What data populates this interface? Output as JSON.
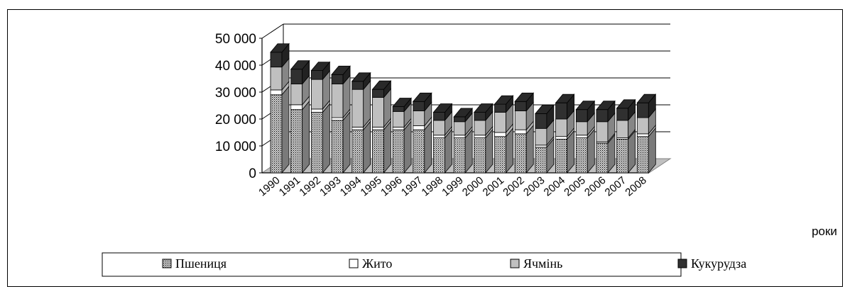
{
  "chart_data": {
    "type": "bar",
    "stacked": true,
    "three_d": true,
    "categories": [
      "1990",
      "1991",
      "1992",
      "1993",
      "1994",
      "1995",
      "1996",
      "1997",
      "1998",
      "1999",
      "2000",
      "2001",
      "2002",
      "2003",
      "2004",
      "2005",
      "2006",
      "2007",
      "2008"
    ],
    "series": [
      {
        "name": "Пшениця",
        "color": "#8c8c8c",
        "pattern": "dots",
        "values": [
          29000,
          23500,
          22500,
          19500,
          16000,
          16000,
          16000,
          16000,
          13000,
          13000,
          13000,
          13500,
          14500,
          9500,
          12500,
          13000,
          11000,
          12500,
          13500
        ]
      },
      {
        "name": "Жито",
        "color": "#ffffff",
        "values": [
          1800,
          1800,
          1200,
          1000,
          1000,
          1000,
          1000,
          1500,
          1000,
          1000,
          1000,
          1500,
          1500,
          800,
          1000,
          1000,
          500,
          500,
          1000
        ]
      },
      {
        "name": "Ячмінь",
        "color": "#c0c0c0",
        "values": [
          8500,
          7700,
          11000,
          12500,
          14000,
          11000,
          5800,
          5500,
          5500,
          5000,
          5500,
          7500,
          7000,
          6200,
          6500,
          5000,
          7500,
          6500,
          6000
        ]
      },
      {
        "name": "Кукурудза",
        "color": "#303030",
        "values": [
          5500,
          5500,
          3300,
          3500,
          3000,
          3000,
          1800,
          3500,
          3000,
          1800,
          3000,
          3000,
          3500,
          5500,
          6000,
          4500,
          4500,
          4500,
          5500
        ]
      }
    ],
    "yticks": [
      "0",
      "10 000",
      "20 000",
      "30 000",
      "40 000",
      "50 000"
    ],
    "ylim": [
      0,
      50000
    ],
    "xlabel": "роки",
    "legend_position": "bottom",
    "grid": true
  }
}
